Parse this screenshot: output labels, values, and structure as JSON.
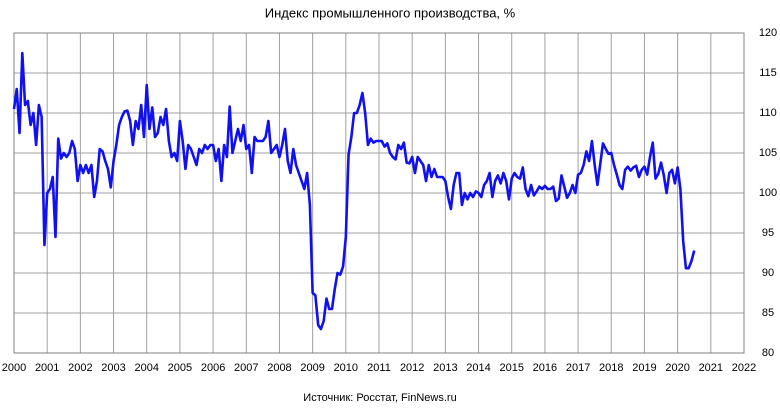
{
  "chart_data": {
    "type": "line",
    "title": "Индекс промышленного производства, %",
    "source": "Источник: Росстат, FinNews.ru",
    "color": "#1010f0",
    "grid": true,
    "xlim": [
      2000,
      2022
    ],
    "xticks": [
      2000,
      2001,
      2002,
      2003,
      2004,
      2005,
      2006,
      2007,
      2008,
      2009,
      2010,
      2011,
      2012,
      2013,
      2014,
      2015,
      2016,
      2017,
      2018,
      2019,
      2020,
      2021,
      2022
    ],
    "ylim": [
      80,
      120
    ],
    "yticks": [
      80,
      85,
      90,
      95,
      100,
      105,
      110,
      115,
      120
    ],
    "x": [
      2000,
      2000.083,
      2000.167,
      2000.25,
      2000.333,
      2000.417,
      2000.5,
      2000.583,
      2000.667,
      2000.75,
      2000.833,
      2000.917,
      2001,
      2001.083,
      2001.167,
      2001.25,
      2001.333,
      2001.417,
      2001.5,
      2001.583,
      2001.667,
      2001.75,
      2001.833,
      2001.917,
      2002,
      2002.083,
      2002.167,
      2002.25,
      2002.333,
      2002.417,
      2002.5,
      2002.583,
      2002.667,
      2002.75,
      2002.833,
      2002.917,
      2003,
      2003.083,
      2003.167,
      2003.25,
      2003.333,
      2003.417,
      2003.5,
      2003.583,
      2003.667,
      2003.75,
      2003.833,
      2003.917,
      2004,
      2004.083,
      2004.167,
      2004.25,
      2004.333,
      2004.417,
      2004.5,
      2004.583,
      2004.667,
      2004.75,
      2004.833,
      2004.917,
      2005,
      2005.083,
      2005.167,
      2005.25,
      2005.333,
      2005.417,
      2005.5,
      2005.583,
      2005.667,
      2005.75,
      2005.833,
      2005.917,
      2006,
      2006.083,
      2006.167,
      2006.25,
      2006.333,
      2006.417,
      2006.5,
      2006.583,
      2006.667,
      2006.75,
      2006.833,
      2006.917,
      2007,
      2007.083,
      2007.167,
      2007.25,
      2007.333,
      2007.417,
      2007.5,
      2007.583,
      2007.667,
      2007.75,
      2007.833,
      2007.917,
      2008,
      2008.083,
      2008.167,
      2008.25,
      2008.333,
      2008.417,
      2008.5,
      2008.583,
      2008.667,
      2008.75,
      2008.833,
      2008.917,
      2009,
      2009.083,
      2009.167,
      2009.25,
      2009.333,
      2009.417,
      2009.5,
      2009.583,
      2009.667,
      2009.75,
      2009.833,
      2009.917,
      2010,
      2010.083,
      2010.167,
      2010.25,
      2010.333,
      2010.417,
      2010.5,
      2010.583,
      2010.667,
      2010.75,
      2010.833,
      2010.917,
      2011,
      2011.083,
      2011.167,
      2011.25,
      2011.333,
      2011.417,
      2011.5,
      2011.583,
      2011.667,
      2011.75,
      2011.833,
      2011.917,
      2012,
      2012.083,
      2012.167,
      2012.25,
      2012.333,
      2012.417,
      2012.5,
      2012.583,
      2012.667,
      2012.75,
      2012.833,
      2012.917,
      2013,
      2013.083,
      2013.167,
      2013.25,
      2013.333,
      2013.417,
      2013.5,
      2013.583,
      2013.667,
      2013.75,
      2013.833,
      2013.917,
      2014,
      2014.083,
      2014.167,
      2014.25,
      2014.333,
      2014.417,
      2014.5,
      2014.583,
      2014.667,
      2014.75,
      2014.833,
      2014.917,
      2015,
      2015.083,
      2015.167,
      2015.25,
      2015.333,
      2015.417,
      2015.5,
      2015.583,
      2015.667,
      2015.75,
      2015.833,
      2015.917,
      2016,
      2016.083,
      2016.167,
      2016.25,
      2016.333,
      2016.417,
      2016.5,
      2016.583,
      2016.667,
      2016.75,
      2016.833,
      2016.917,
      2017,
      2017.083,
      2017.167,
      2017.25,
      2017.333,
      2017.417,
      2017.5,
      2017.583,
      2017.667,
      2017.75,
      2017.833,
      2017.917,
      2018,
      2018.083,
      2018.167,
      2018.25,
      2018.333,
      2018.417,
      2018.5,
      2018.583,
      2018.667,
      2018.75,
      2018.833,
      2018.917,
      2019,
      2019.083,
      2019.167,
      2019.25,
      2019.333,
      2019.417,
      2019.5,
      2019.583,
      2019.667,
      2019.75,
      2019.833,
      2019.917,
      2020,
      2020.083,
      2020.167,
      2020.25,
      2020.333,
      2020.417,
      2020.5
    ],
    "values": [
      110.5,
      113,
      107.5,
      117.5,
      111,
      111.5,
      108.5,
      110,
      106,
      111,
      109.5,
      93.5,
      100,
      100.5,
      102,
      94.5,
      106.8,
      104.3,
      105,
      104.5,
      105,
      106.5,
      105.5,
      101.5,
      103.5,
      102.5,
      103.5,
      102.5,
      103.5,
      99.5,
      101.5,
      105.5,
      105.2,
      104,
      103,
      100.7,
      104,
      106,
      108.5,
      109.5,
      110.2,
      110.3,
      109,
      106,
      109,
      108,
      111,
      107,
      113.5,
      108,
      110.7,
      107,
      107.5,
      109.5,
      108.5,
      110.5,
      106.5,
      104.5,
      105,
      104,
      109,
      106.5,
      103,
      106,
      105.5,
      104.5,
      103.5,
      105.5,
      105,
      106,
      105.5,
      106,
      106,
      104,
      105.5,
      101.5,
      106,
      104.5,
      110.8,
      105,
      106.5,
      108,
      106.5,
      108.5,
      105.5,
      106,
      102.5,
      107,
      106.5,
      106.5,
      106.5,
      107,
      109,
      105,
      105.5,
      106,
      104.5,
      106,
      108,
      104,
      102.5,
      105.5,
      103.5,
      102.5,
      101.5,
      100.5,
      102.5,
      98.5,
      87.5,
      87.2,
      83.5,
      83,
      84,
      86.8,
      85.5,
      85.5,
      88,
      90,
      89.8,
      90.8,
      94.5,
      104.8,
      107,
      110,
      110,
      111,
      112.5,
      110,
      106,
      106.8,
      106.3,
      106.5,
      106.5,
      106.5,
      105.8,
      106.2,
      105,
      104.5,
      104.2,
      106,
      105.5,
      106.3,
      103.8,
      103.7,
      104.5,
      102.5,
      104.5,
      104,
      103.5,
      101.5,
      103.5,
      102,
      103,
      102,
      102,
      102,
      101.5,
      99.5,
      98,
      101,
      102.5,
      102.5,
      98.5,
      100,
      99.2,
      100,
      99.5,
      100.2,
      100,
      99.5,
      101,
      101.5,
      102.5,
      99.5,
      101.5,
      102.2,
      101.2,
      102.5,
      101.5,
      99.2,
      101.8,
      102.5,
      102,
      101.8,
      103.2,
      100.5,
      99.6,
      101,
      99.7,
      100.2,
      100.8,
      100.5,
      100.9,
      100.5,
      100.5,
      100.8,
      99,
      99.3,
      102.2,
      100.8,
      99.4,
      100,
      101,
      100,
      102.3,
      102.5,
      103.5,
      105.2,
      104,
      106.5,
      103.5,
      101,
      103.6,
      106.2,
      105.5,
      104.9,
      105,
      103.5,
      102.3,
      101,
      100.5,
      102.9,
      103.3,
      102.8,
      103.2,
      103.4,
      102,
      102.9,
      103.3,
      102.3,
      104.5,
      106.3,
      101.8,
      102.4,
      103.8,
      102.2,
      100,
      102.5,
      102.9,
      101.2,
      103.2,
      100.5,
      94,
      90.6,
      90.6,
      91.5,
      92.8
    ]
  }
}
